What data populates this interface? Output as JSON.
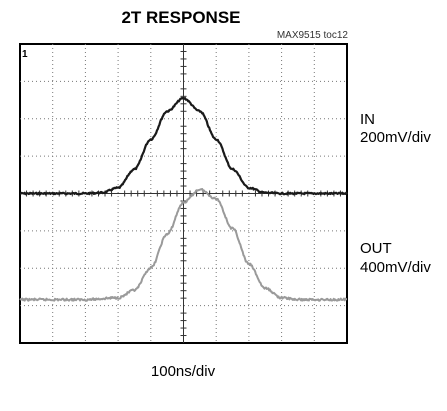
{
  "chart_data": {
    "type": "line",
    "title": "2T RESPONSE",
    "figure_id": "MAX9515 toc12",
    "xlabel": "100ns/div",
    "grid": true,
    "x_divisions": 10,
    "y_divisions": 8,
    "x_unit": "ns",
    "x_per_div": 100,
    "trigger_marker": "1",
    "series": [
      {
        "name": "IN",
        "scale_label": "200mV/div",
        "color": "#1a1a1a",
        "scale_mV_per_div": 200,
        "x": [
          0,
          100,
          200,
          250,
          300,
          350,
          400,
          450,
          500,
          550,
          600,
          650,
          700,
          750,
          800,
          900,
          1000
        ],
        "values_div": [
          0,
          0,
          0,
          0.02,
          0.15,
          0.65,
          1.45,
          2.2,
          2.55,
          2.2,
          1.45,
          0.65,
          0.15,
          0.02,
          0,
          0,
          0
        ],
        "values_mV": [
          0,
          0,
          0,
          4,
          30,
          130,
          290,
          440,
          510,
          440,
          290,
          130,
          30,
          4,
          0,
          0,
          0
        ]
      },
      {
        "name": "OUT",
        "scale_label": "400mV/div",
        "color": "#9a9a9a",
        "scale_mV_per_div": 400,
        "x": [
          0,
          100,
          200,
          300,
          350,
          400,
          450,
          500,
          550,
          600,
          650,
          700,
          750,
          800,
          850,
          900,
          1000
        ],
        "values_div": [
          0,
          0,
          0,
          0.05,
          0.25,
          0.85,
          1.75,
          2.6,
          2.95,
          2.7,
          1.9,
          0.95,
          0.3,
          0.05,
          0,
          0,
          0
        ],
        "values_mV": [
          0,
          0,
          0,
          20,
          100,
          340,
          700,
          1040,
          1180,
          1080,
          760,
          380,
          120,
          20,
          0,
          0,
          0
        ]
      }
    ]
  }
}
